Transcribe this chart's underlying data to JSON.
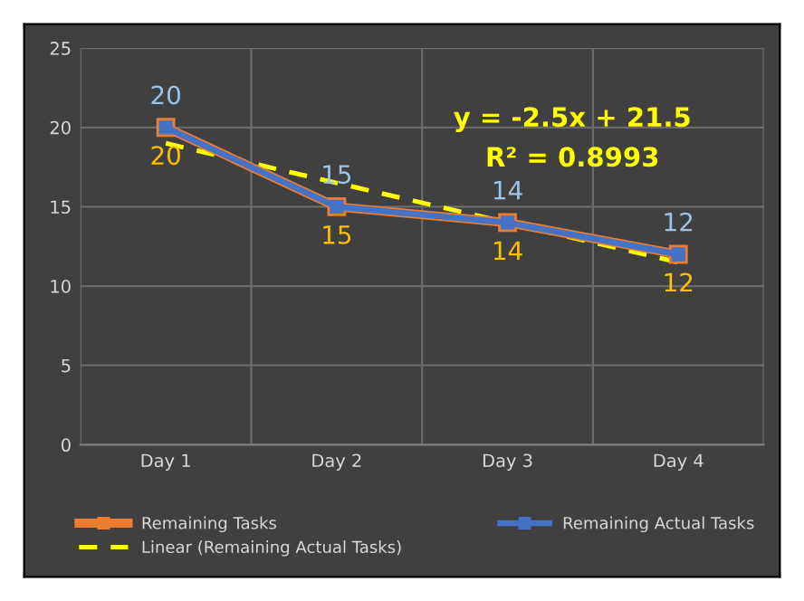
{
  "chart_data": {
    "type": "line",
    "categories": [
      "Day 1",
      "Day 2",
      "Day 3",
      "Day 4"
    ],
    "series": [
      {
        "name": "Remaining Tasks",
        "color": "#ed7d31",
        "values": [
          20,
          15,
          14,
          12
        ],
        "marker": "square",
        "data_labels": true
      },
      {
        "name": "Remaining Actual Tasks",
        "color": "#4472c4",
        "values": [
          20,
          15,
          14,
          12
        ],
        "marker": "square",
        "data_labels": true
      },
      {
        "name": "Linear (Remaining Actual Tasks)",
        "color": "#ffff00",
        "values": [
          19,
          16.5,
          14,
          11.5
        ],
        "line_style": "dashed",
        "marker": "none"
      }
    ],
    "ylim": [
      0,
      25
    ],
    "yticks": [
      0,
      5,
      10,
      15,
      20,
      25
    ],
    "grid": true,
    "legend": "bottom",
    "annotations": [
      "y = -2.5x + 21.5",
      "R² = 0.8993"
    ]
  }
}
